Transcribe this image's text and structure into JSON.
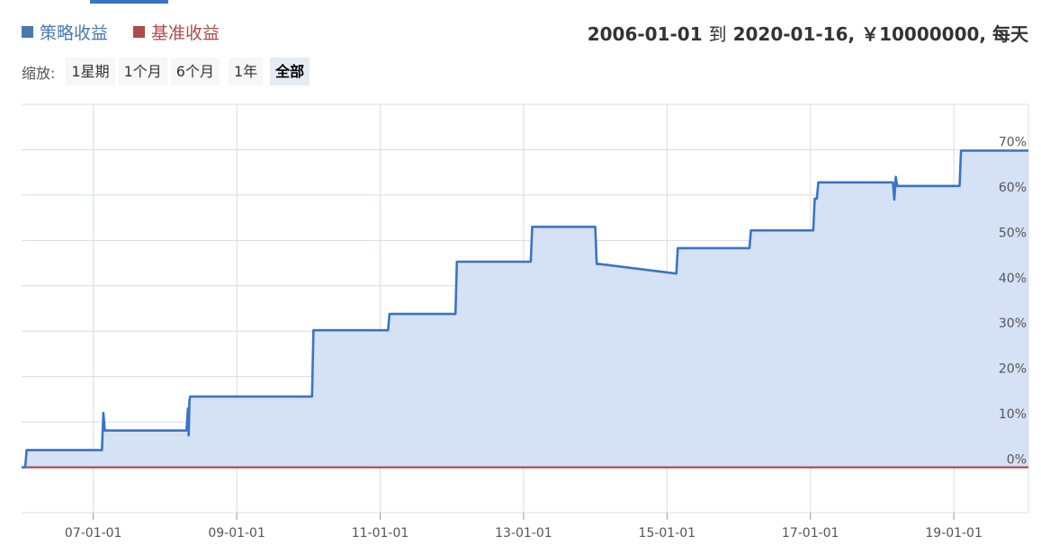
{
  "legend": {
    "strategy_label": "策略收益",
    "benchmark_label": "基准收益"
  },
  "summary": {
    "start_date": "2006-01-01",
    "to": "到",
    "end_date": "2020-01-16",
    "capital": "￥10000000",
    "frequency": "每天"
  },
  "zoom": {
    "label": "缩放:",
    "options": [
      "1星期",
      "1个月",
      "6个月",
      "1年",
      "全部"
    ],
    "selected": "全部"
  },
  "colors": {
    "strategy": "#3a74c4",
    "strategy_fill": "#d5e1f4",
    "benchmark": "#b03a3a",
    "grid": "#d8dce3",
    "accent": "#3a74c4"
  },
  "chart_data": {
    "type": "area",
    "x_tick_labels": [
      "07-01-01",
      "09-01-01",
      "11-01-01",
      "13-01-01",
      "15-01-01",
      "17-01-01",
      "19-01-01"
    ],
    "x_ticks": [
      2007.0,
      2009.0,
      2011.0,
      2013.0,
      2015.0,
      2017.0,
      2019.0
    ],
    "y_tick_labels": [
      "0%",
      "10%",
      "20%",
      "30%",
      "40%",
      "50%",
      "60%",
      "70%"
    ],
    "y_ticks": [
      0,
      10,
      20,
      30,
      40,
      50,
      60,
      70
    ],
    "xlim": [
      2006.0,
      2020.04
    ],
    "ylim": [
      -10,
      80
    ],
    "grid": true,
    "series": [
      {
        "name": "策略收益",
        "x": [
          2006.0,
          2006.05,
          2006.07,
          2007.12,
          2007.14,
          2007.16,
          2007.18,
          2008.3,
          2008.32,
          2008.33,
          2008.34,
          2008.35,
          2008.37,
          2010.05,
          2010.07,
          2010.09,
          2011.11,
          2011.13,
          2011.16,
          2012.05,
          2012.07,
          2012.09,
          2013.1,
          2013.12,
          2013.14,
          2014.0,
          2014.02,
          2014.04,
          2014.06,
          2015.13,
          2015.15,
          2015.17,
          2016.15,
          2016.17,
          2016.19,
          2017.04,
          2017.06,
          2017.07,
          2017.09,
          2017.11,
          2018.15,
          2018.17,
          2018.19,
          2018.21,
          2019.06,
          2019.08,
          2019.1,
          2020.04
        ],
        "y": [
          0,
          0,
          3.8,
          3.8,
          12.0,
          8.1,
          8.1,
          8.1,
          13.0,
          7.0,
          14.5,
          15.6,
          15.6,
          15.6,
          30.2,
          30.2,
          30.2,
          33.8,
          33.8,
          33.8,
          45.3,
          45.3,
          45.3,
          53.0,
          53.0,
          53.0,
          44.8,
          44.8,
          44.8,
          42.7,
          48.3,
          48.3,
          48.3,
          52.2,
          52.2,
          52.2,
          59.2,
          59.2,
          59.2,
          62.8,
          62.8,
          59.0,
          64.0,
          62.0,
          62.0,
          62.0,
          69.8,
          69.8
        ]
      },
      {
        "name": "基准收益",
        "x": [
          2006.0,
          2020.04
        ],
        "y": [
          0,
          0
        ]
      }
    ]
  }
}
